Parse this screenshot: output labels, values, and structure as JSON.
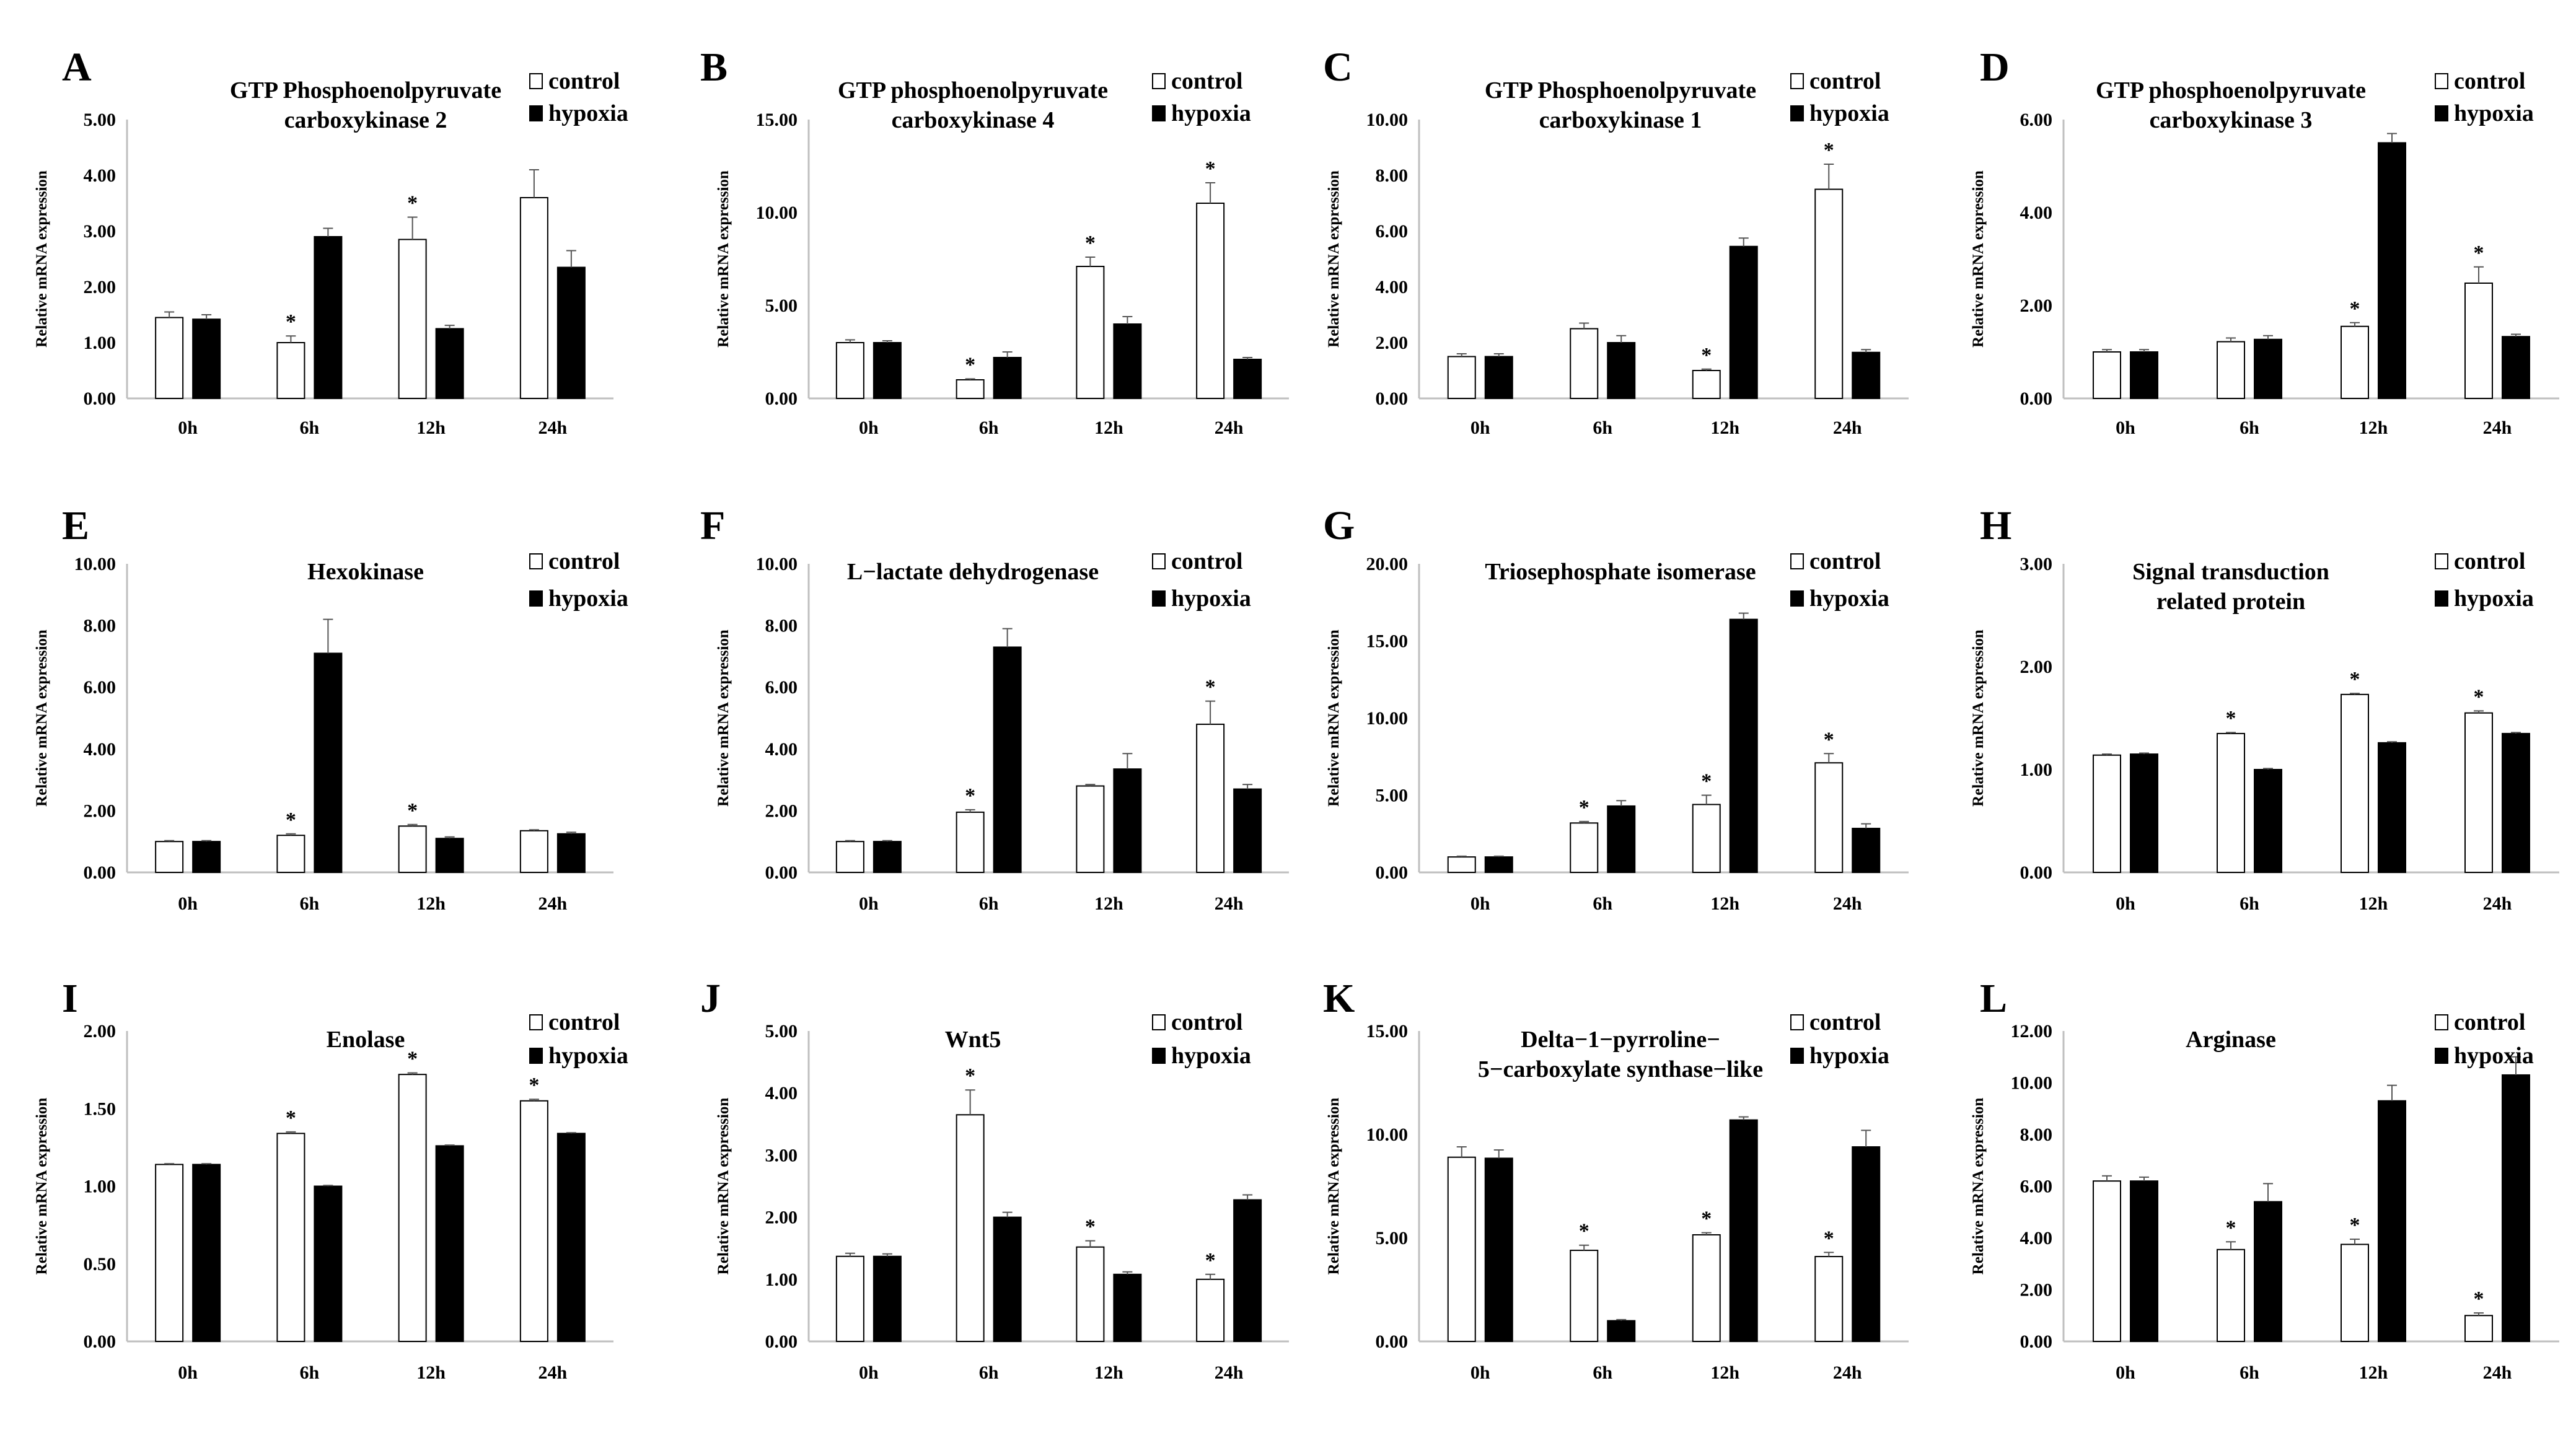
{
  "figure": {
    "y_axis_label": "Relative mRNA expression",
    "legend": [
      "control",
      "hypoxia"
    ],
    "categories": [
      "0h",
      "6h",
      "12h",
      "24h"
    ],
    "significance_marker": "*"
  },
  "chart_data": [
    {
      "panel": "A",
      "type": "bar",
      "title": [
        "GTP Phosphoenolpyruvate",
        "carboxykinase 2"
      ],
      "ylabel": "Relative mRNA expression",
      "categories": [
        "0h",
        "6h",
        "12h",
        "24h"
      ],
      "ylim": [
        0,
        5
      ],
      "yticks": [
        "0.00",
        "1.00",
        "2.00",
        "3.00",
        "4.00",
        "5.00"
      ],
      "series": [
        {
          "name": "control",
          "values": [
            1.45,
            1.0,
            2.85,
            3.6
          ],
          "errors": [
            0.1,
            0.12,
            0.4,
            0.5
          ],
          "significant": [
            false,
            true,
            true,
            false
          ]
        },
        {
          "name": "hypoxia",
          "values": [
            1.42,
            2.9,
            1.25,
            2.35
          ],
          "errors": [
            0.08,
            0.15,
            0.06,
            0.3
          ]
        }
      ]
    },
    {
      "panel": "B",
      "type": "bar",
      "title": [
        "GTP phosphoenolpyruvate",
        "carboxykinase 4"
      ],
      "ylabel": "Relative mRNA expression",
      "categories": [
        "0h",
        "6h",
        "12h",
        "24h"
      ],
      "ylim": [
        0,
        15
      ],
      "yticks": [
        "0.00",
        "5.00",
        "10.00",
        "15.00"
      ],
      "series": [
        {
          "name": "control",
          "values": [
            3.0,
            1.0,
            7.1,
            10.5
          ],
          "errors": [
            0.15,
            0.05,
            0.5,
            1.1
          ],
          "significant": [
            false,
            true,
            true,
            true
          ]
        },
        {
          "name": "hypoxia",
          "values": [
            3.0,
            2.2,
            4.0,
            2.1
          ],
          "errors": [
            0.1,
            0.3,
            0.4,
            0.1
          ]
        }
      ]
    },
    {
      "panel": "C",
      "type": "bar",
      "title": [
        "GTP Phosphoenolpyruvate",
        "carboxykinase 1"
      ],
      "ylabel": "Relative mRNA expression",
      "categories": [
        "0h",
        "6h",
        "12h",
        "24h"
      ],
      "ylim": [
        0,
        10
      ],
      "yticks": [
        "0.00",
        "2.00",
        "4.00",
        "6.00",
        "8.00",
        "10.00"
      ],
      "series": [
        {
          "name": "control",
          "values": [
            1.5,
            2.5,
            1.0,
            7.5
          ],
          "errors": [
            0.1,
            0.2,
            0.05,
            0.9
          ],
          "significant": [
            false,
            false,
            true,
            true
          ]
        },
        {
          "name": "hypoxia",
          "values": [
            1.5,
            2.0,
            5.45,
            1.65
          ],
          "errors": [
            0.1,
            0.25,
            0.3,
            0.1
          ]
        }
      ]
    },
    {
      "panel": "D",
      "type": "bar",
      "title": [
        "GTP phosphoenolpyruvate",
        "carboxykinase 3"
      ],
      "ylabel": "Relative mRNA expression",
      "categories": [
        "0h",
        "6h",
        "12h",
        "24h"
      ],
      "ylim": [
        0,
        6
      ],
      "yticks": [
        "0.00",
        "2.00",
        "4.00",
        "6.00"
      ],
      "series": [
        {
          "name": "control",
          "values": [
            1.0,
            1.22,
            1.55,
            2.48
          ],
          "errors": [
            0.05,
            0.08,
            0.08,
            0.35
          ],
          "significant": [
            false,
            false,
            true,
            true
          ]
        },
        {
          "name": "hypoxia",
          "values": [
            1.0,
            1.27,
            5.5,
            1.33
          ],
          "errors": [
            0.05,
            0.08,
            0.2,
            0.05
          ]
        }
      ]
    },
    {
      "panel": "E",
      "type": "bar",
      "title": [
        "Hexokinase"
      ],
      "ylabel": "Relative mRNA expression",
      "categories": [
        "0h",
        "6h",
        "12h",
        "24h"
      ],
      "ylim": [
        0,
        10
      ],
      "yticks": [
        "0.00",
        "2.00",
        "4.00",
        "6.00",
        "8.00",
        "10.00"
      ],
      "series": [
        {
          "name": "control",
          "values": [
            1.0,
            1.2,
            1.5,
            1.35
          ],
          "errors": [
            0.03,
            0.05,
            0.05,
            0.03
          ],
          "significant": [
            false,
            true,
            true,
            false
          ]
        },
        {
          "name": "hypoxia",
          "values": [
            1.0,
            7.1,
            1.1,
            1.25
          ],
          "errors": [
            0.03,
            1.1,
            0.05,
            0.05
          ]
        }
      ]
    },
    {
      "panel": "F",
      "type": "bar",
      "title": [
        "L−lactate dehydrogenase"
      ],
      "ylabel": "Relative mRNA expression",
      "categories": [
        "0h",
        "6h",
        "12h",
        "24h"
      ],
      "ylim": [
        0,
        10
      ],
      "yticks": [
        "0.00",
        "2.00",
        "4.00",
        "6.00",
        "8.00",
        "10.00"
      ],
      "series": [
        {
          "name": "control",
          "values": [
            1.0,
            1.95,
            2.8,
            4.8
          ],
          "errors": [
            0.03,
            0.08,
            0.05,
            0.75
          ],
          "significant": [
            false,
            true,
            false,
            true
          ]
        },
        {
          "name": "hypoxia",
          "values": [
            1.0,
            7.3,
            3.35,
            2.7
          ],
          "errors": [
            0.03,
            0.6,
            0.5,
            0.15
          ]
        }
      ]
    },
    {
      "panel": "G",
      "type": "bar",
      "title": [
        "Triosephosphate isomerase"
      ],
      "ylabel": "Relative mRNA expression",
      "categories": [
        "0h",
        "6h",
        "12h",
        "24h"
      ],
      "ylim": [
        0,
        20
      ],
      "yticks": [
        "0.00",
        "5.00",
        "10.00",
        "15.00",
        "20.00"
      ],
      "series": [
        {
          "name": "control",
          "values": [
            1.0,
            3.2,
            4.4,
            7.1
          ],
          "errors": [
            0.05,
            0.1,
            0.6,
            0.6
          ],
          "significant": [
            false,
            true,
            true,
            true
          ]
        },
        {
          "name": "hypoxia",
          "values": [
            1.0,
            4.3,
            16.4,
            2.85
          ],
          "errors": [
            0.05,
            0.35,
            0.4,
            0.3
          ]
        }
      ]
    },
    {
      "panel": "H",
      "type": "bar",
      "title": [
        "Signal transduction",
        "related protein"
      ],
      "ylabel": "Relative mRNA expression",
      "categories": [
        "0h",
        "6h",
        "12h",
        "24h"
      ],
      "ylim": [
        0,
        3
      ],
      "yticks": [
        "0.00",
        "1.00",
        "2.00",
        "3.00"
      ],
      "series": [
        {
          "name": "control",
          "values": [
            1.14,
            1.35,
            1.73,
            1.55
          ],
          "errors": [
            0.01,
            0.01,
            0.01,
            0.02
          ],
          "significant": [
            false,
            true,
            true,
            true
          ]
        },
        {
          "name": "hypoxia",
          "values": [
            1.15,
            1.0,
            1.26,
            1.35
          ],
          "errors": [
            0.01,
            0.01,
            0.01,
            0.01
          ]
        }
      ]
    },
    {
      "panel": "I",
      "type": "bar",
      "title": [
        "Enolase"
      ],
      "ylabel": "Relative mRNA expression",
      "categories": [
        "0h",
        "6h",
        "12h",
        "24h"
      ],
      "ylim": [
        0,
        2
      ],
      "yticks": [
        "0.00",
        "0.50",
        "1.00",
        "1.50",
        "2.00"
      ],
      "series": [
        {
          "name": "control",
          "values": [
            1.14,
            1.34,
            1.72,
            1.55
          ],
          "errors": [
            0.005,
            0.01,
            0.01,
            0.01
          ],
          "significant": [
            false,
            true,
            true,
            true
          ]
        },
        {
          "name": "hypoxia",
          "values": [
            1.14,
            1.0,
            1.26,
            1.34
          ],
          "errors": [
            0.005,
            0.005,
            0.005,
            0.005
          ]
        }
      ]
    },
    {
      "panel": "J",
      "type": "bar",
      "title": [
        "Wnt5"
      ],
      "ylabel": "Relative mRNA expression",
      "categories": [
        "0h",
        "6h",
        "12h",
        "24h"
      ],
      "ylim": [
        0,
        5
      ],
      "yticks": [
        "0.00",
        "1.00",
        "2.00",
        "3.00",
        "4.00",
        "5.00"
      ],
      "series": [
        {
          "name": "control",
          "values": [
            1.37,
            3.65,
            1.52,
            1.0
          ],
          "errors": [
            0.05,
            0.4,
            0.1,
            0.08
          ],
          "significant": [
            false,
            true,
            true,
            true
          ]
        },
        {
          "name": "hypoxia",
          "values": [
            1.37,
            2.0,
            1.08,
            2.28
          ],
          "errors": [
            0.04,
            0.08,
            0.04,
            0.08
          ]
        }
      ]
    },
    {
      "panel": "K",
      "type": "bar",
      "title": [
        "Delta−1−pyrroline−",
        "5−carboxylate synthase−like"
      ],
      "ylabel": "Relative mRNA expression",
      "categories": [
        "0h",
        "6h",
        "12h",
        "24h"
      ],
      "ylim": [
        0,
        15
      ],
      "yticks": [
        "0.00",
        "5.00",
        "10.00",
        "15.00"
      ],
      "series": [
        {
          "name": "control",
          "values": [
            8.9,
            4.4,
            5.15,
            4.1
          ],
          "errors": [
            0.5,
            0.25,
            0.1,
            0.2
          ],
          "significant": [
            false,
            true,
            true,
            true
          ]
        },
        {
          "name": "hypoxia",
          "values": [
            8.85,
            1.0,
            10.7,
            9.4
          ],
          "errors": [
            0.4,
            0.05,
            0.15,
            0.8
          ]
        }
      ]
    },
    {
      "panel": "L",
      "type": "bar",
      "title": [
        "Arginase"
      ],
      "ylabel": "Relative mRNA expression",
      "categories": [
        "0h",
        "6h",
        "12h",
        "24h"
      ],
      "ylim": [
        0,
        12
      ],
      "yticks": [
        "0.00",
        "2.00",
        "4.00",
        "6.00",
        "8.00",
        "10.00",
        "12.00"
      ],
      "series": [
        {
          "name": "control",
          "values": [
            6.2,
            3.55,
            3.75,
            1.0
          ],
          "errors": [
            0.2,
            0.3,
            0.2,
            0.1
          ],
          "significant": [
            false,
            true,
            true,
            true
          ]
        },
        {
          "name": "hypoxia",
          "values": [
            6.2,
            5.4,
            9.3,
            10.3
          ],
          "errors": [
            0.15,
            0.7,
            0.6,
            0.7
          ]
        }
      ]
    }
  ]
}
